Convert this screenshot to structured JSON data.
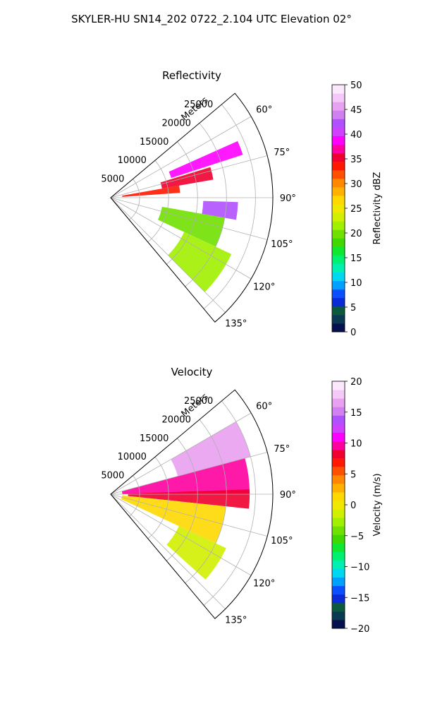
{
  "suptitle": "SKYLER-HU  SN14_202  0722_2.104 UTC Elevation 02°",
  "chart_data": [
    {
      "type": "heatmap",
      "subtype": "polar-sector-ppi",
      "title": "Reflectivity",
      "radial_axis_label": "Meters",
      "radial_ticks": [
        "5000",
        "10000",
        "15000",
        "20000",
        "25000"
      ],
      "radial_tick_values": [
        5000,
        10000,
        15000,
        20000,
        25000
      ],
      "rmax": 28000,
      "azimuth_range_deg": [
        50,
        140
      ],
      "azimuth_ticks": [
        "60°",
        "75°",
        "90°",
        "105°",
        "120°",
        "135°"
      ],
      "azimuth_tick_values": [
        60,
        75,
        90,
        105,
        120,
        135
      ],
      "grid": true,
      "colorbar": {
        "label": "Reflectivity dBZ",
        "range": [
          0,
          50
        ],
        "ticks": [
          "0",
          "5",
          "10",
          "15",
          "20",
          "25",
          "30",
          "35",
          "40",
          "45",
          "50"
        ],
        "tick_values": [
          0,
          5,
          10,
          15,
          20,
          25,
          30,
          35,
          40,
          45,
          50
        ],
        "colors": [
          "#07104f",
          "#0a3a52",
          "#0c5a3e",
          "#0b2bd6",
          "#0a50ff",
          "#00a0ff",
          "#00d8f0",
          "#00f0b0",
          "#00f070",
          "#10e830",
          "#40d800",
          "#70e000",
          "#a0f000",
          "#d0f000",
          "#f0e800",
          "#ffd800",
          "#ffb000",
          "#ff8800",
          "#ff5000",
          "#ff1800",
          "#f00030",
          "#ff00a0",
          "#ff00ff",
          "#d040ff",
          "#b050ff",
          "#d080f0",
          "#e8a0f0",
          "#f4c8f8",
          "#fce8fc"
        ]
      },
      "echo_features": [
        {
          "az": [
            66,
            72
          ],
          "r": [
            11000,
            24000
          ],
          "value": 38
        },
        {
          "az": [
            73,
            80
          ],
          "r": [
            9000,
            18000
          ],
          "value": 35
        },
        {
          "az": [
            80,
            86
          ],
          "r": [
            2000,
            12000
          ],
          "value": 33
        },
        {
          "az": [
            92,
            100
          ],
          "r": [
            16000,
            22000
          ],
          "value": 42
        },
        {
          "az": [
            100,
            115
          ],
          "r": [
            9000,
            20000
          ],
          "value": 20
        },
        {
          "az": [
            115,
            135
          ],
          "r": [
            14000,
            23000
          ],
          "value": 21
        }
      ]
    },
    {
      "type": "heatmap",
      "subtype": "polar-sector-ppi",
      "title": "Velocity",
      "radial_axis_label": "Meters",
      "radial_ticks": [
        "5000",
        "10000",
        "15000",
        "20000",
        "25000"
      ],
      "radial_tick_values": [
        5000,
        10000,
        15000,
        20000,
        25000
      ],
      "rmax": 28000,
      "azimuth_range_deg": [
        50,
        140
      ],
      "azimuth_ticks": [
        "60°",
        "75°",
        "90°",
        "105°",
        "120°",
        "135°"
      ],
      "azimuth_tick_values": [
        60,
        75,
        90,
        105,
        120,
        135
      ],
      "grid": true,
      "colorbar": {
        "label": "Velocity (m/s)",
        "range": [
          -20,
          20
        ],
        "ticks": [
          "−20",
          "−15",
          "−10",
          "−5",
          "0",
          "5",
          "10",
          "15",
          "20"
        ],
        "tick_values": [
          -20,
          -15,
          -10,
          -5,
          0,
          5,
          10,
          15,
          20
        ],
        "colors": [
          "#07104f",
          "#0a3a52",
          "#0c5a3e",
          "#0b2bd6",
          "#0a50ff",
          "#00a0ff",
          "#00d8f0",
          "#00f0b0",
          "#00f070",
          "#10e830",
          "#40d800",
          "#70e000",
          "#a0f000",
          "#d0f000",
          "#f0e800",
          "#ffd800",
          "#ffb000",
          "#ff8800",
          "#ff5000",
          "#ff1800",
          "#f00030",
          "#ff00a0",
          "#ff00ff",
          "#d040ff",
          "#b050ff",
          "#d080f0",
          "#e8a0f0",
          "#f4c8f8",
          "#fce8fc"
        ]
      },
      "echo_features": [
        {
          "az": [
            60,
            75
          ],
          "r": [
            12000,
            25000
          ],
          "value": 16
        },
        {
          "az": [
            75,
            90
          ],
          "r": [
            2000,
            24000
          ],
          "value": 10
        },
        {
          "az": [
            88,
            96
          ],
          "r": [
            3000,
            24000
          ],
          "value": 8
        },
        {
          "az": [
            96,
            115
          ],
          "r": [
            2000,
            20000
          ],
          "value": 2
        },
        {
          "az": [
            115,
            132
          ],
          "r": [
            13000,
            22000
          ],
          "value": -2
        }
      ]
    }
  ]
}
